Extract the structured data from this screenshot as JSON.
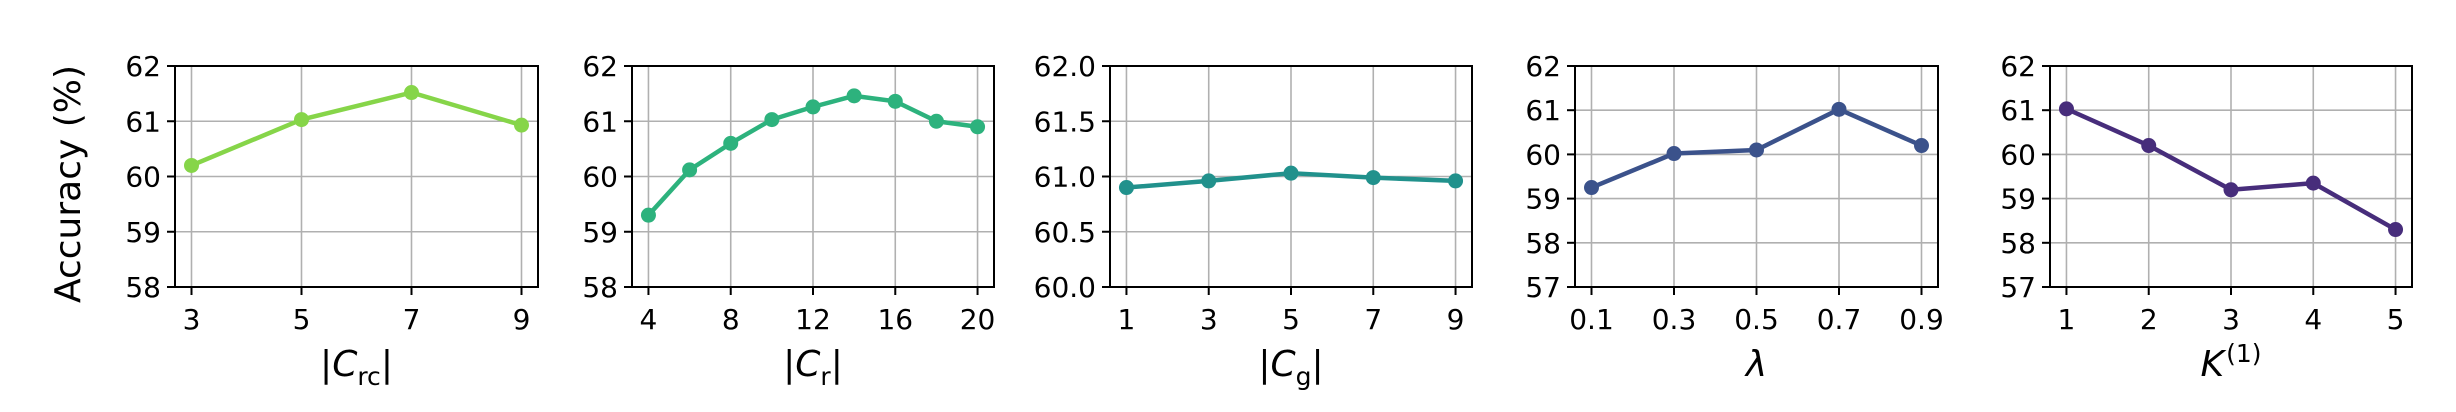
{
  "figure": {
    "ylabel": "Accuracy (%)"
  },
  "chart_data": [
    {
      "type": "line",
      "xlabel_base": "|C",
      "xlabel_sub": "rc",
      "xlabel_suffix": "|",
      "x": [
        3,
        5,
        7,
        9
      ],
      "x_ticks": [
        "3",
        "5",
        "7",
        "9"
      ],
      "y": [
        60.2,
        61.03,
        61.52,
        60.93
      ],
      "ylim": [
        58,
        62
      ],
      "y_ticks": [
        "58",
        "59",
        "60",
        "61",
        "62"
      ],
      "color": "#86d549",
      "grid": true
    },
    {
      "type": "line",
      "xlabel_base": "|C",
      "xlabel_sub": "r",
      "xlabel_suffix": "|",
      "x": [
        4,
        6,
        8,
        10,
        12,
        14,
        16,
        18,
        20
      ],
      "x_ticks": [
        "4",
        "8",
        "12",
        "16",
        "20"
      ],
      "y": [
        59.3,
        60.12,
        60.6,
        61.03,
        61.26,
        61.46,
        61.36,
        61.0,
        60.9
      ],
      "ylim": [
        58,
        62
      ],
      "y_ticks": [
        "58",
        "59",
        "60",
        "61",
        "62"
      ],
      "color": "#2db27d",
      "grid": true
    },
    {
      "type": "line",
      "xlabel_base": "|C",
      "xlabel_sub": "g",
      "xlabel_suffix": "|",
      "x": [
        1,
        3,
        5,
        7,
        9
      ],
      "x_ticks": [
        "1",
        "3",
        "5",
        "7",
        "9"
      ],
      "y": [
        60.9,
        60.96,
        61.03,
        60.99,
        60.96
      ],
      "ylim": [
        60.0,
        62.0
      ],
      "y_ticks": [
        "60.0",
        "60.5",
        "61.0",
        "61.5",
        "62.0"
      ],
      "color": "#21918c",
      "grid": true
    },
    {
      "type": "line",
      "xlabel_base": "λ",
      "xlabel_sub": "",
      "xlabel_suffix": "",
      "x": [
        0.1,
        0.3,
        0.5,
        0.7,
        0.9
      ],
      "x_ticks": [
        "0.1",
        "0.3",
        "0.5",
        "0.7",
        "0.9"
      ],
      "y": [
        59.25,
        60.02,
        60.1,
        61.02,
        60.2
      ],
      "ylim": [
        57,
        62
      ],
      "y_ticks": [
        "57",
        "58",
        "59",
        "60",
        "61",
        "62"
      ],
      "color": "#3b528b",
      "grid": true
    },
    {
      "type": "line",
      "xlabel_base": "K",
      "xlabel_sup": "(1)",
      "xlabel_sub": "",
      "xlabel_suffix": "",
      "x": [
        1,
        2,
        3,
        4,
        5
      ],
      "x_ticks": [
        "1",
        "2",
        "3",
        "4",
        "5"
      ],
      "y": [
        61.03,
        60.2,
        59.2,
        59.35,
        58.3
      ],
      "ylim": [
        57,
        62
      ],
      "y_ticks": [
        "57",
        "58",
        "59",
        "60",
        "61",
        "62"
      ],
      "color": "#472d7b",
      "grid": true
    }
  ]
}
